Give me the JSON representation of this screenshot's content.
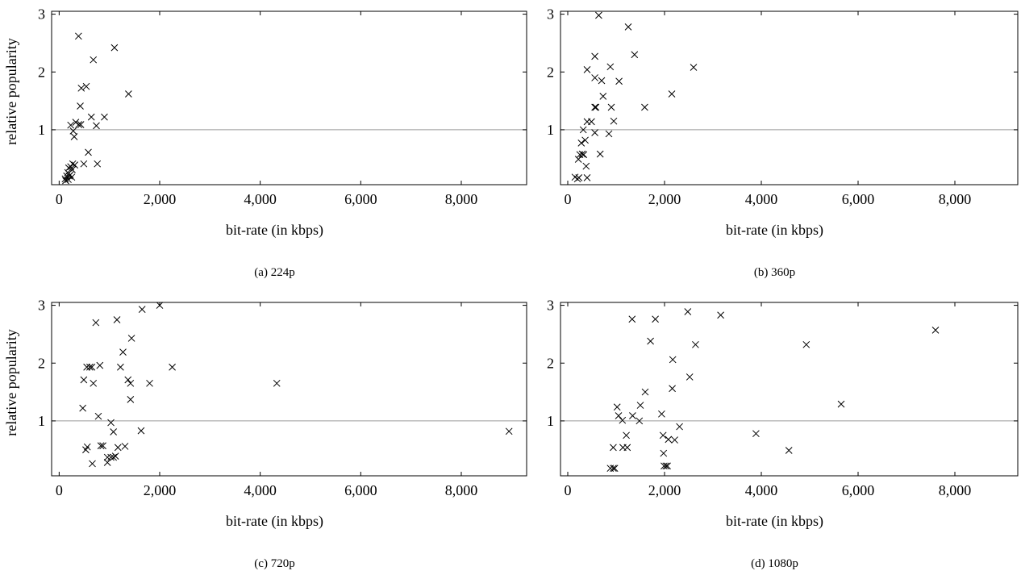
{
  "chart_data": [
    {
      "type": "scatter",
      "caption": "(a) 224p",
      "xlabel": "bit-rate (in kbps)",
      "ylabel": "relative popularity",
      "xlim": [
        -150,
        9300
      ],
      "ylim": [
        0.05,
        3.05
      ],
      "xticks": [
        0,
        2000,
        4000,
        6000,
        8000
      ],
      "xtick_labels": [
        "0",
        "2,000",
        "4,000",
        "6,000",
        "8,000"
      ],
      "yticks": [
        1,
        2,
        3
      ],
      "ytick_labels": [
        "1",
        "2",
        "3"
      ],
      "reference_line_y": 1,
      "marker": "x",
      "points": [
        [
          385,
          2.62
        ],
        [
          1100,
          2.42
        ],
        [
          680,
          2.21
        ],
        [
          540,
          1.75
        ],
        [
          440,
          1.72
        ],
        [
          1380,
          1.62
        ],
        [
          420,
          1.41
        ],
        [
          640,
          1.22
        ],
        [
          900,
          1.22
        ],
        [
          230,
          1.08
        ],
        [
          330,
          1.13
        ],
        [
          390,
          1.09
        ],
        [
          430,
          1.09
        ],
        [
          740,
          1.07
        ],
        [
          280,
          0.98
        ],
        [
          300,
          0.88
        ],
        [
          580,
          0.61
        ],
        [
          490,
          0.41
        ],
        [
          760,
          0.41
        ],
        [
          270,
          0.41
        ],
        [
          230,
          0.36
        ],
        [
          310,
          0.39
        ],
        [
          190,
          0.34
        ],
        [
          260,
          0.31
        ],
        [
          170,
          0.26
        ],
        [
          220,
          0.22
        ],
        [
          150,
          0.2
        ],
        [
          250,
          0.18
        ],
        [
          120,
          0.15
        ],
        [
          180,
          0.14
        ],
        [
          130,
          0.12
        ],
        [
          200,
          0.2
        ]
      ]
    },
    {
      "type": "scatter",
      "caption": "(b) 360p",
      "xlabel": "bit-rate (in kbps)",
      "ylabel": "",
      "xlim": [
        -150,
        9300
      ],
      "ylim": [
        0.05,
        3.05
      ],
      "xticks": [
        0,
        2000,
        4000,
        6000,
        8000
      ],
      "xtick_labels": [
        "0",
        "2,000",
        "4,000",
        "6,000",
        "8,000"
      ],
      "yticks": [
        1,
        2,
        3
      ],
      "ytick_labels": [
        "1",
        "2",
        "3"
      ],
      "reference_line_y": 1,
      "marker": "x",
      "points": [
        [
          640,
          2.98
        ],
        [
          1250,
          2.78
        ],
        [
          1380,
          2.3
        ],
        [
          560,
          2.27
        ],
        [
          2600,
          2.08
        ],
        [
          880,
          2.09
        ],
        [
          400,
          2.04
        ],
        [
          560,
          1.9
        ],
        [
          700,
          1.85
        ],
        [
          1060,
          1.84
        ],
        [
          2150,
          1.62
        ],
        [
          730,
          1.58
        ],
        [
          560,
          1.39
        ],
        [
          580,
          1.39
        ],
        [
          900,
          1.39
        ],
        [
          1590,
          1.39
        ],
        [
          400,
          1.14
        ],
        [
          490,
          1.14
        ],
        [
          950,
          1.15
        ],
        [
          320,
          1.0
        ],
        [
          560,
          0.95
        ],
        [
          850,
          0.93
        ],
        [
          360,
          0.82
        ],
        [
          280,
          0.77
        ],
        [
          670,
          0.58
        ],
        [
          300,
          0.58
        ],
        [
          330,
          0.57
        ],
        [
          250,
          0.57
        ],
        [
          220,
          0.49
        ],
        [
          380,
          0.37
        ],
        [
          400,
          0.17
        ],
        [
          230,
          0.17
        ],
        [
          150,
          0.18
        ],
        [
          200,
          0.15
        ]
      ]
    },
    {
      "type": "scatter",
      "caption": "(c) 720p",
      "xlabel": "bit-rate (in kbps)",
      "ylabel": "relative popularity",
      "xlim": [
        -150,
        9300
      ],
      "ylim": [
        0.05,
        3.05
      ],
      "xticks": [
        0,
        2000,
        4000,
        6000,
        8000
      ],
      "xtick_labels": [
        "0",
        "2,000",
        "4,000",
        "6,000",
        "8,000"
      ],
      "yticks": [
        1,
        2,
        3
      ],
      "ytick_labels": [
        "1",
        "2",
        "3"
      ],
      "reference_line_y": 1,
      "marker": "x",
      "points": [
        [
          2000,
          3.0
        ],
        [
          1650,
          2.93
        ],
        [
          1150,
          2.75
        ],
        [
          730,
          2.7
        ],
        [
          1440,
          2.43
        ],
        [
          1270,
          2.19
        ],
        [
          810,
          1.96
        ],
        [
          550,
          1.93
        ],
        [
          610,
          1.93
        ],
        [
          650,
          1.93
        ],
        [
          1220,
          1.93
        ],
        [
          2250,
          1.93
        ],
        [
          490,
          1.71
        ],
        [
          1370,
          1.71
        ],
        [
          680,
          1.65
        ],
        [
          1420,
          1.65
        ],
        [
          1800,
          1.65
        ],
        [
          4330,
          1.65
        ],
        [
          1420,
          1.37
        ],
        [
          470,
          1.22
        ],
        [
          780,
          1.08
        ],
        [
          1030,
          0.97
        ],
        [
          1630,
          0.83
        ],
        [
          1080,
          0.81
        ],
        [
          8950,
          0.82
        ],
        [
          1310,
          0.56
        ],
        [
          1170,
          0.54
        ],
        [
          560,
          0.55
        ],
        [
          530,
          0.5
        ],
        [
          830,
          0.57
        ],
        [
          870,
          0.57
        ],
        [
          960,
          0.37
        ],
        [
          1030,
          0.37
        ],
        [
          1080,
          0.37
        ],
        [
          1120,
          0.39
        ],
        [
          960,
          0.28
        ],
        [
          660,
          0.26
        ]
      ]
    },
    {
      "type": "scatter",
      "caption": "(d) 1080p",
      "xlabel": "bit-rate (in kbps)",
      "ylabel": "",
      "xlim": [
        -150,
        9300
      ],
      "ylim": [
        0.05,
        3.05
      ],
      "xticks": [
        0,
        2000,
        4000,
        6000,
        8000
      ],
      "xtick_labels": [
        "0",
        "2,000",
        "4,000",
        "6,000",
        "8,000"
      ],
      "yticks": [
        1,
        2,
        3
      ],
      "ytick_labels": [
        "1",
        "2",
        "3"
      ],
      "reference_line_y": 1,
      "marker": "x",
      "points": [
        [
          2480,
          2.89
        ],
        [
          3160,
          2.83
        ],
        [
          1330,
          2.76
        ],
        [
          1810,
          2.76
        ],
        [
          7600,
          2.57
        ],
        [
          1710,
          2.38
        ],
        [
          2640,
          2.32
        ],
        [
          4930,
          2.32
        ],
        [
          2170,
          2.06
        ],
        [
          2520,
          1.76
        ],
        [
          1600,
          1.5
        ],
        [
          2160,
          1.56
        ],
        [
          5650,
          1.29
        ],
        [
          1020,
          1.24
        ],
        [
          1500,
          1.27
        ],
        [
          1940,
          1.12
        ],
        [
          1050,
          1.09
        ],
        [
          1340,
          1.09
        ],
        [
          1480,
          1.0
        ],
        [
          1130,
          1.01
        ],
        [
          2310,
          0.9
        ],
        [
          3890,
          0.78
        ],
        [
          1210,
          0.75
        ],
        [
          1970,
          0.75
        ],
        [
          2080,
          0.68
        ],
        [
          2210,
          0.67
        ],
        [
          940,
          0.54
        ],
        [
          1140,
          0.54
        ],
        [
          1230,
          0.54
        ],
        [
          4570,
          0.49
        ],
        [
          1980,
          0.44
        ],
        [
          1990,
          0.22
        ],
        [
          2030,
          0.22
        ],
        [
          2060,
          0.22
        ],
        [
          880,
          0.18
        ],
        [
          940,
          0.18
        ],
        [
          970,
          0.18
        ]
      ]
    }
  ]
}
